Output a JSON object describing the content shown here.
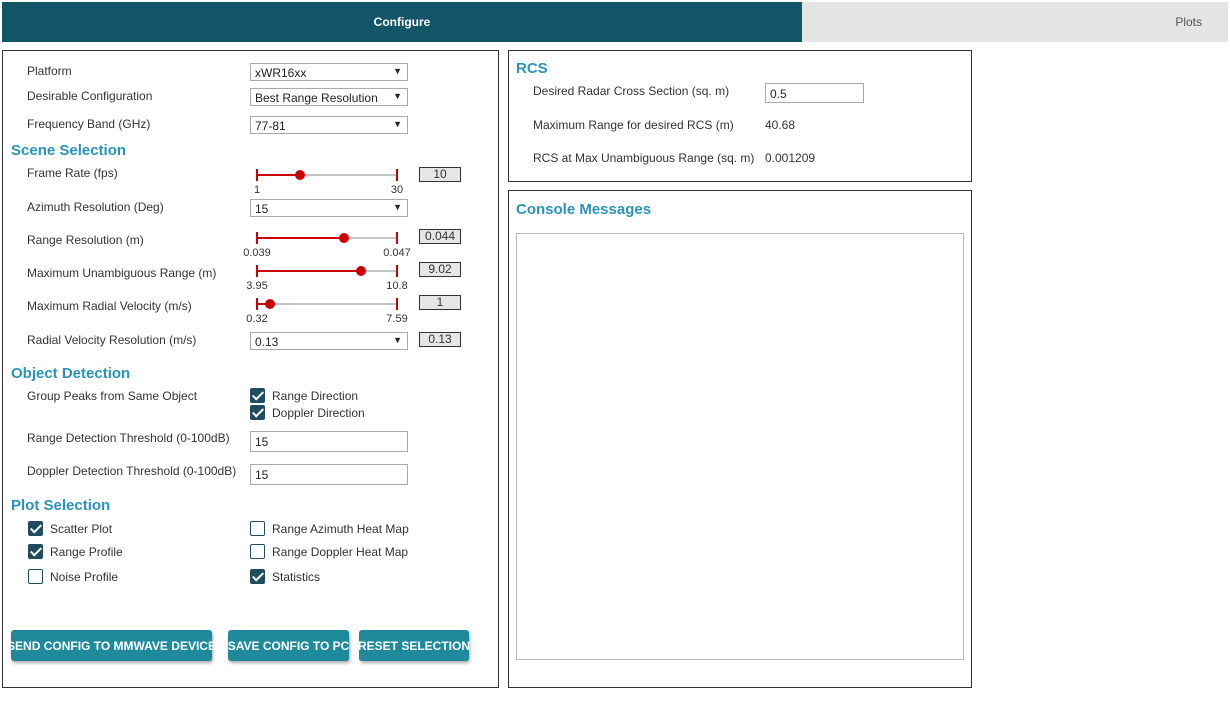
{
  "tabs": {
    "configure": "Configure",
    "plots": "Plots"
  },
  "platform": {
    "label": "Platform",
    "value": "xWR16xx",
    "desirable_label": "Desirable Configuration",
    "desirable_value": "Best Range Resolution",
    "freq_label": "Frequency Band (GHz)",
    "freq_value": "77-81"
  },
  "scene": {
    "title": "Scene Selection",
    "frame_rate": {
      "label": "Frame Rate (fps)",
      "min": "1",
      "max": "30",
      "value": "10",
      "fraction": 0.31
    },
    "azimuth": {
      "label": "Azimuth Resolution (Deg)",
      "value": "15"
    },
    "range_res": {
      "label": "Range Resolution (m)",
      "min": "0.039",
      "max": "0.047",
      "value": "0.044",
      "fraction": 0.62
    },
    "max_range": {
      "label": "Maximum Unambiguous Range (m)",
      "min": "3.95",
      "max": "10.8",
      "value": "9.02",
      "fraction": 0.74
    },
    "max_vel": {
      "label": "Maximum Radial Velocity (m/s)",
      "min": "0.32",
      "max": "7.59",
      "value": "1",
      "fraction": 0.09
    },
    "vel_res": {
      "label": "Radial Velocity Resolution (m/s)",
      "value": "0.13",
      "display": "0.13"
    }
  },
  "object_detection": {
    "title": "Object Detection",
    "group_label": "Group Peaks from Same Object",
    "range_direction": {
      "label": "Range Direction",
      "checked": true
    },
    "doppler_direction": {
      "label": "Doppler Direction",
      "checked": true
    },
    "range_threshold": {
      "label": "Range Detection Threshold (0-100dB)",
      "value": "15"
    },
    "doppler_threshold": {
      "label": "Doppler Detection Threshold (0-100dB)",
      "value": "15"
    }
  },
  "plot_selection": {
    "title": "Plot Selection",
    "scatter": {
      "label": "Scatter Plot",
      "checked": true
    },
    "range_profile": {
      "label": "Range Profile",
      "checked": true
    },
    "noise_profile": {
      "label": "Noise Profile",
      "checked": false
    },
    "range_azimuth": {
      "label": "Range Azimuth Heat Map",
      "checked": false
    },
    "range_doppler": {
      "label": "Range Doppler Heat Map",
      "checked": false
    },
    "statistics": {
      "label": "Statistics",
      "checked": true
    }
  },
  "buttons": {
    "send": "SEND CONFIG TO MMWAVE DEVICE",
    "save": "SAVE CONFIG TO PC",
    "reset": "RESET SELECTION"
  },
  "rcs": {
    "title": "RCS",
    "desired_label": "Desired Radar Cross Section (sq. m)",
    "desired_value": "0.5",
    "max_range_label": "Maximum Range for desired RCS (m)",
    "max_range_value": "40.68",
    "rcs_max_label": "RCS at Max Unambiguous Range (sq. m)",
    "rcs_max_value": "0.001209"
  },
  "console": {
    "title": "Console Messages"
  },
  "colors": {
    "accent": "#2a94b8",
    "tab_active": "#115566",
    "button": "#1e8a9c",
    "slider": "#cc0000"
  }
}
